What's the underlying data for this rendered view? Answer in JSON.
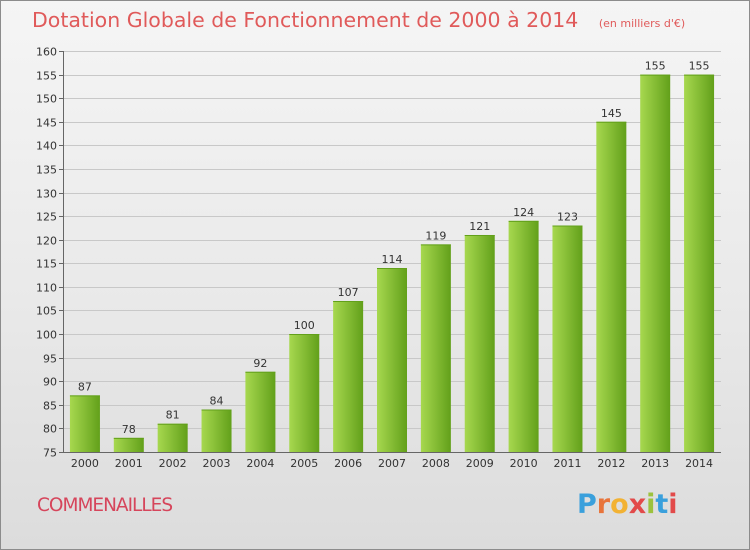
{
  "header": {
    "title": "Dotation Globale de Fonctionnement de 2000 à 2014",
    "subtitle": "(en milliers d'€)"
  },
  "footer": {
    "place": "COMMENAILLES",
    "logo_letters": [
      "P",
      "r",
      "o",
      "x",
      "i",
      "t",
      "i"
    ],
    "logo_colors": [
      "#3aa0dc",
      "#e8743b",
      "#f2b233",
      "#e24a4a",
      "#9cc23d",
      "#3aa0dc",
      "#e24a4a"
    ]
  },
  "colors": {
    "bar_light": "#a7d84f",
    "bar_dark": "#62a01a",
    "grid": "#c8c8c8",
    "axis": "#666666"
  },
  "chart_data": {
    "type": "bar",
    "title": "Dotation Globale de Fonctionnement de 2000 à 2014",
    "subtitle": "(en milliers d'€)",
    "categories": [
      "2000",
      "2001",
      "2002",
      "2003",
      "2004",
      "2005",
      "2006",
      "2007",
      "2008",
      "2009",
      "2010",
      "2011",
      "2012",
      "2013",
      "2014"
    ],
    "values": [
      87,
      78,
      81,
      84,
      92,
      100,
      107,
      114,
      119,
      121,
      124,
      123,
      145,
      155,
      155
    ],
    "ylim": [
      75,
      160
    ],
    "yticks": [
      75,
      80,
      85,
      90,
      95,
      100,
      105,
      110,
      115,
      120,
      125,
      130,
      135,
      140,
      145,
      150,
      155,
      160
    ],
    "grid": true,
    "legend": "none"
  }
}
